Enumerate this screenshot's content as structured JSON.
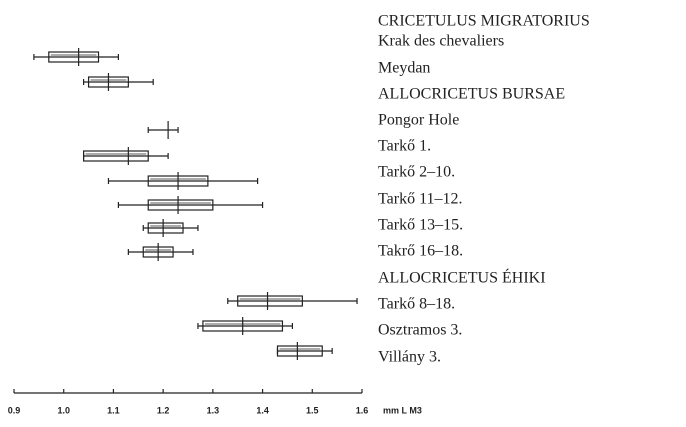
{
  "chart_data": {
    "type": "range",
    "categories": [
      "CRICETULUS MIGRATORIUS",
      "Krak des chevaliers",
      "Meydan",
      "ALLOCRICETUS BURSAE",
      "Pongor Hole",
      "Tarkő 1.",
      "Tarkő 2–10.",
      "Tarkő 11–12.",
      "Tarkő 13–15.",
      "Takrő 16–18.",
      "ALLOCRICETUS ÉHIKI",
      "Tarkő 8–18.",
      "Osztramos 3.",
      "Villány 3."
    ],
    "min": [
      null,
      0.94,
      1.04,
      null,
      1.17,
      1.04,
      1.09,
      1.11,
      1.16,
      1.13,
      null,
      1.33,
      1.27,
      1.43
    ],
    "max": [
      null,
      1.11,
      1.18,
      null,
      1.23,
      1.21,
      1.39,
      1.4,
      1.27,
      1.26,
      null,
      1.59,
      1.46,
      1.54
    ],
    "q1": [
      null,
      0.97,
      1.05,
      null,
      null,
      1.04,
      1.17,
      1.17,
      1.17,
      1.16,
      null,
      1.35,
      1.28,
      1.43
    ],
    "q3": [
      null,
      1.07,
      1.13,
      null,
      null,
      1.17,
      1.29,
      1.3,
      1.24,
      1.22,
      null,
      1.48,
      1.44,
      1.52
    ],
    "mean": [
      null,
      1.03,
      1.09,
      null,
      1.21,
      1.13,
      1.23,
      1.23,
      1.2,
      1.19,
      null,
      1.41,
      1.36,
      1.47
    ],
    "xlim": [
      0.9,
      1.6
    ],
    "xticks": [
      0.9,
      {
        "value": 1,
        "label": "1.0"
      },
      1.1,
      1.2,
      1.3,
      1.4,
      1.5,
      1.6
    ],
    "xlabel": "mm L M3",
    "color": "#222222"
  }
}
